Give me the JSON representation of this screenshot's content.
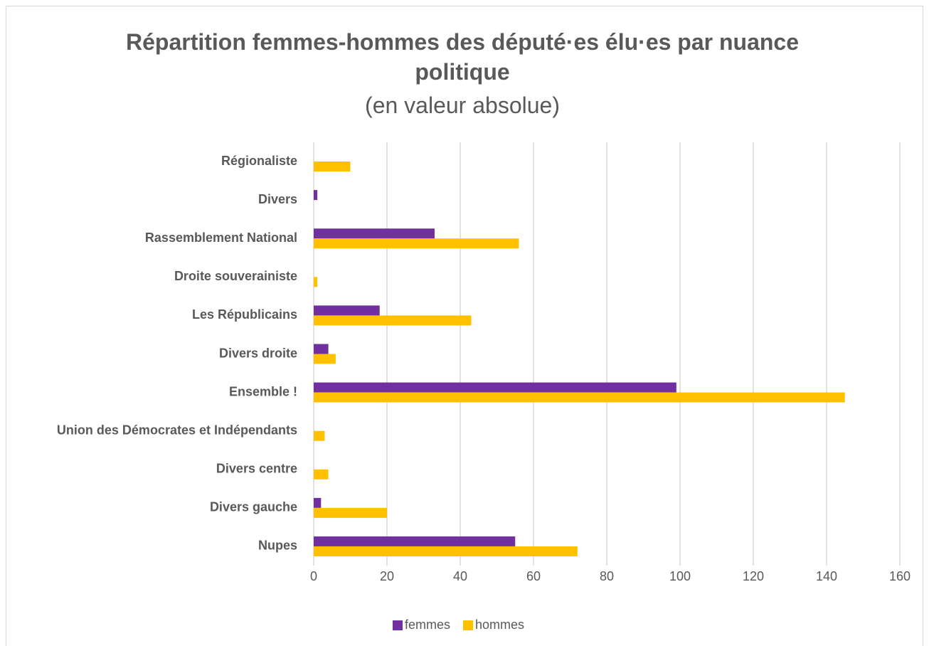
{
  "chart_data": {
    "type": "bar",
    "orientation": "horizontal",
    "title": "Répartition femmes-hommes des député·es élu·es par nuance politique",
    "subtitle": "(en valeur absolue)",
    "categories": [
      "Nupes",
      "Divers gauche",
      "Divers centre",
      "Union des Démocrates et Indépendants",
      "Ensemble !",
      "Divers droite",
      "Les Républicains",
      "Droite souverainiste",
      "Rassemblement National",
      "Divers",
      "Régionaliste"
    ],
    "series": [
      {
        "name": "femmes",
        "color": "#7030a0",
        "values": [
          55,
          2,
          0,
          0,
          99,
          4,
          18,
          0,
          33,
          1,
          0
        ]
      },
      {
        "name": "hommes",
        "color": "#ffc000",
        "values": [
          72,
          20,
          4,
          3,
          145,
          6,
          43,
          1,
          56,
          0,
          10
        ]
      }
    ],
    "xlim": [
      0,
      160
    ],
    "xticks": [
      0,
      20,
      40,
      60,
      80,
      100,
      120,
      140,
      160
    ],
    "grid": true,
    "legend": "bottom"
  }
}
